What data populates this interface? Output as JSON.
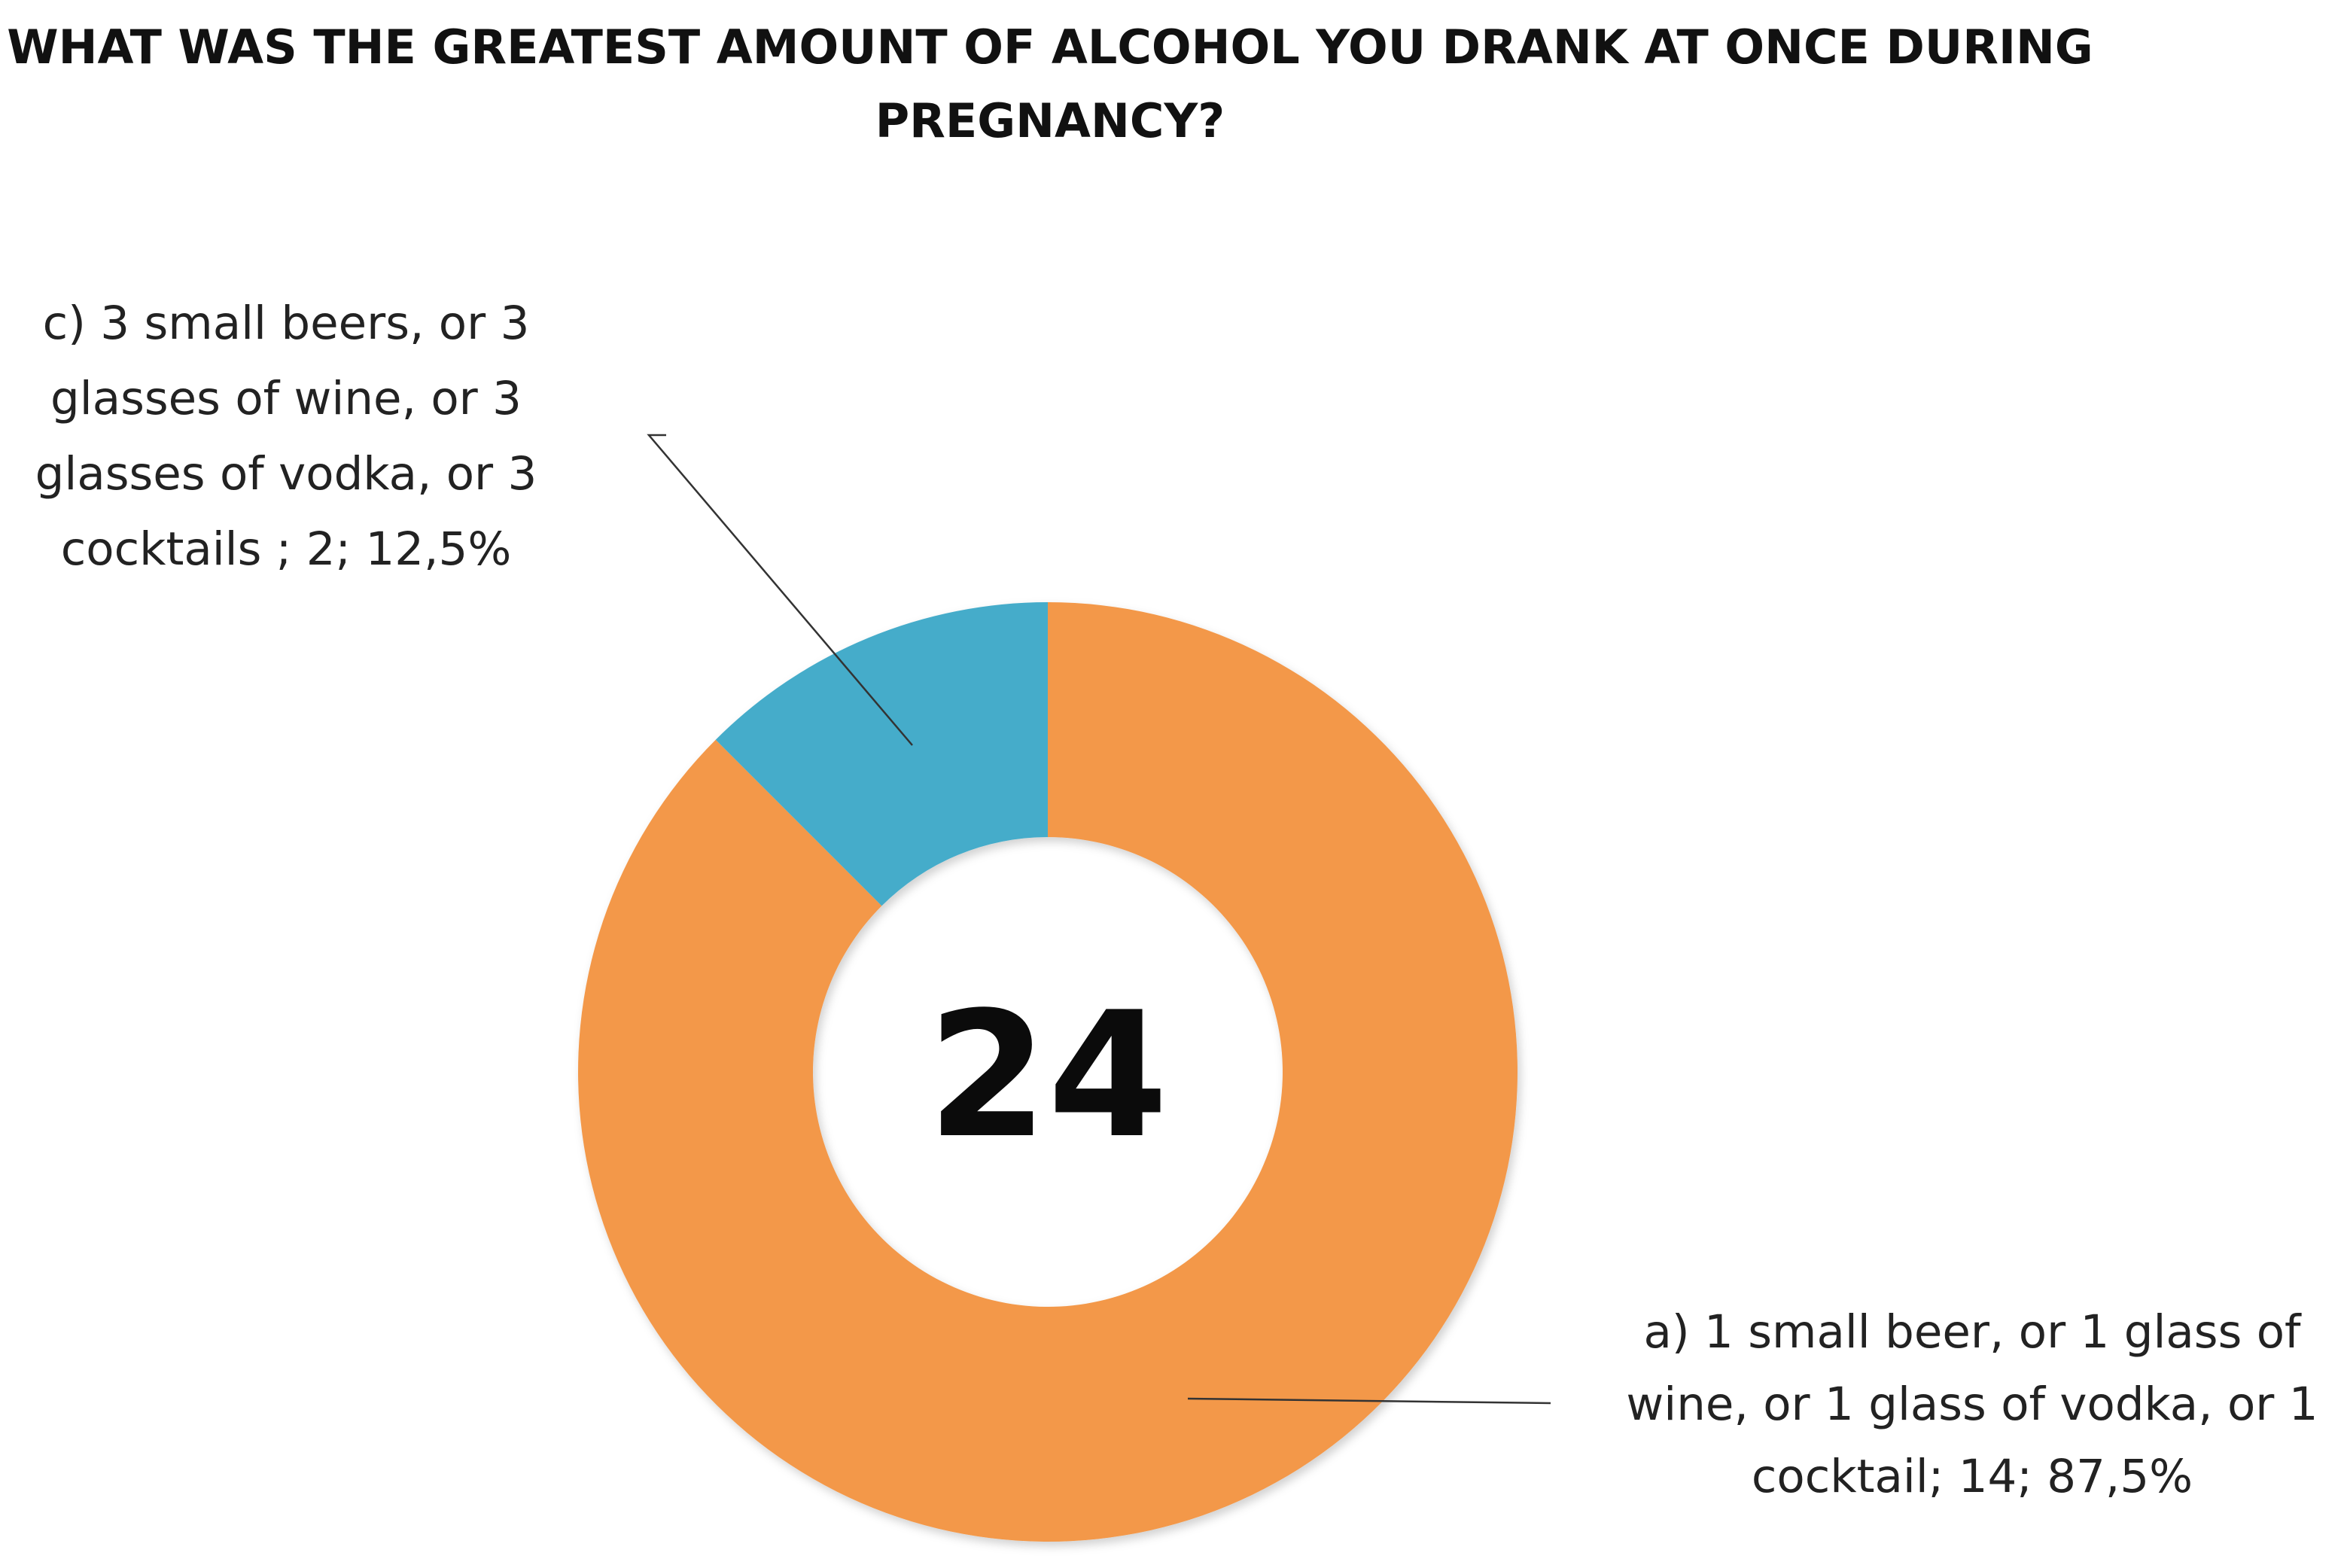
{
  "chart_data": {
    "type": "pie",
    "variant": "donut",
    "title": "WHAT WAS THE GREATEST AMOUNT OF ALCOHOL YOU DRANK AT ONCE DURING PREGNANCY?",
    "center_label": "24",
    "slices": [
      {
        "category": "a) 1 small beer, or 1 glass of wine, or 1 glass of vodka, or 1 cocktail",
        "value": 14,
        "percent": 87.5,
        "color": "#F39849",
        "label_lines": [
          "a) 1 small beer, or 1 glass of",
          "wine, or 1 glass of vodka, or 1",
          "cocktail; 14; 87,5%"
        ]
      },
      {
        "category": "c) 3 small beers, or 3 glasses of wine, or 3 glasses of vodka, or 3 cocktails",
        "value": 2,
        "percent": 12.5,
        "color": "#45ACCA",
        "label_lines": [
          "c) 3 small beers, or 3",
          "glasses of wine, or 3",
          "glasses of vodka, or 3",
          "cocktails ; 2; 12,5%"
        ]
      }
    ],
    "legend": "none"
  }
}
